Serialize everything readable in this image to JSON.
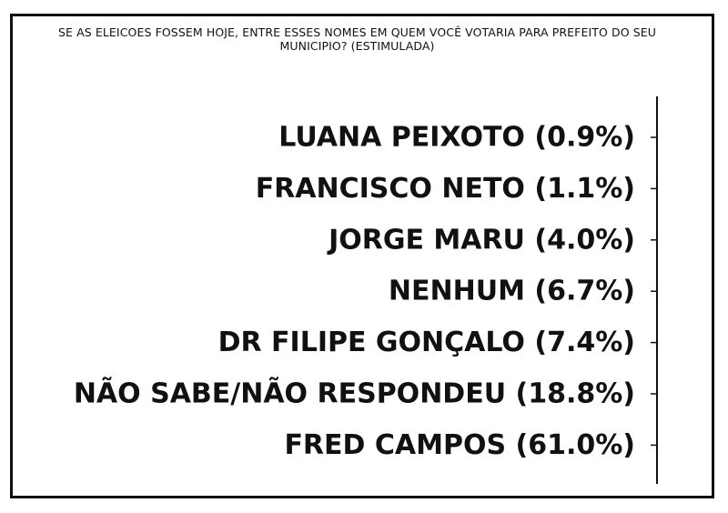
{
  "chart_data": {
    "type": "bar",
    "title": "SE AS ELEICOES FOSSEM HOJE, ENTRE ESSES NOMES EM QUEM VOCÊ VOTARIA PARA PREFEITO DO SEU MUNICIPIO? (ESTIMULADA)",
    "categories": [
      "LUANA PEIXOTO (0.9%)",
      "FRANCISCO NETO (1.1%)",
      "JORGE MARU (4.0%)",
      "NENHUM (6.7%)",
      "DR FILIPE GONÇALO (7.4%)",
      "NÃO SABE/NÃO RESPONDEU (18.8%)",
      "FRED CAMPOS (61.0%)"
    ],
    "values": [
      0.9,
      1.1,
      4.0,
      6.7,
      7.4,
      18.8,
      61.0
    ],
    "unit": "%",
    "orientation": "horizontal",
    "xlabel": "",
    "ylabel": "",
    "grid": false,
    "legend": "none",
    "colors": {
      "text": "#111111",
      "axis": "#111111",
      "border": "#111111"
    }
  }
}
